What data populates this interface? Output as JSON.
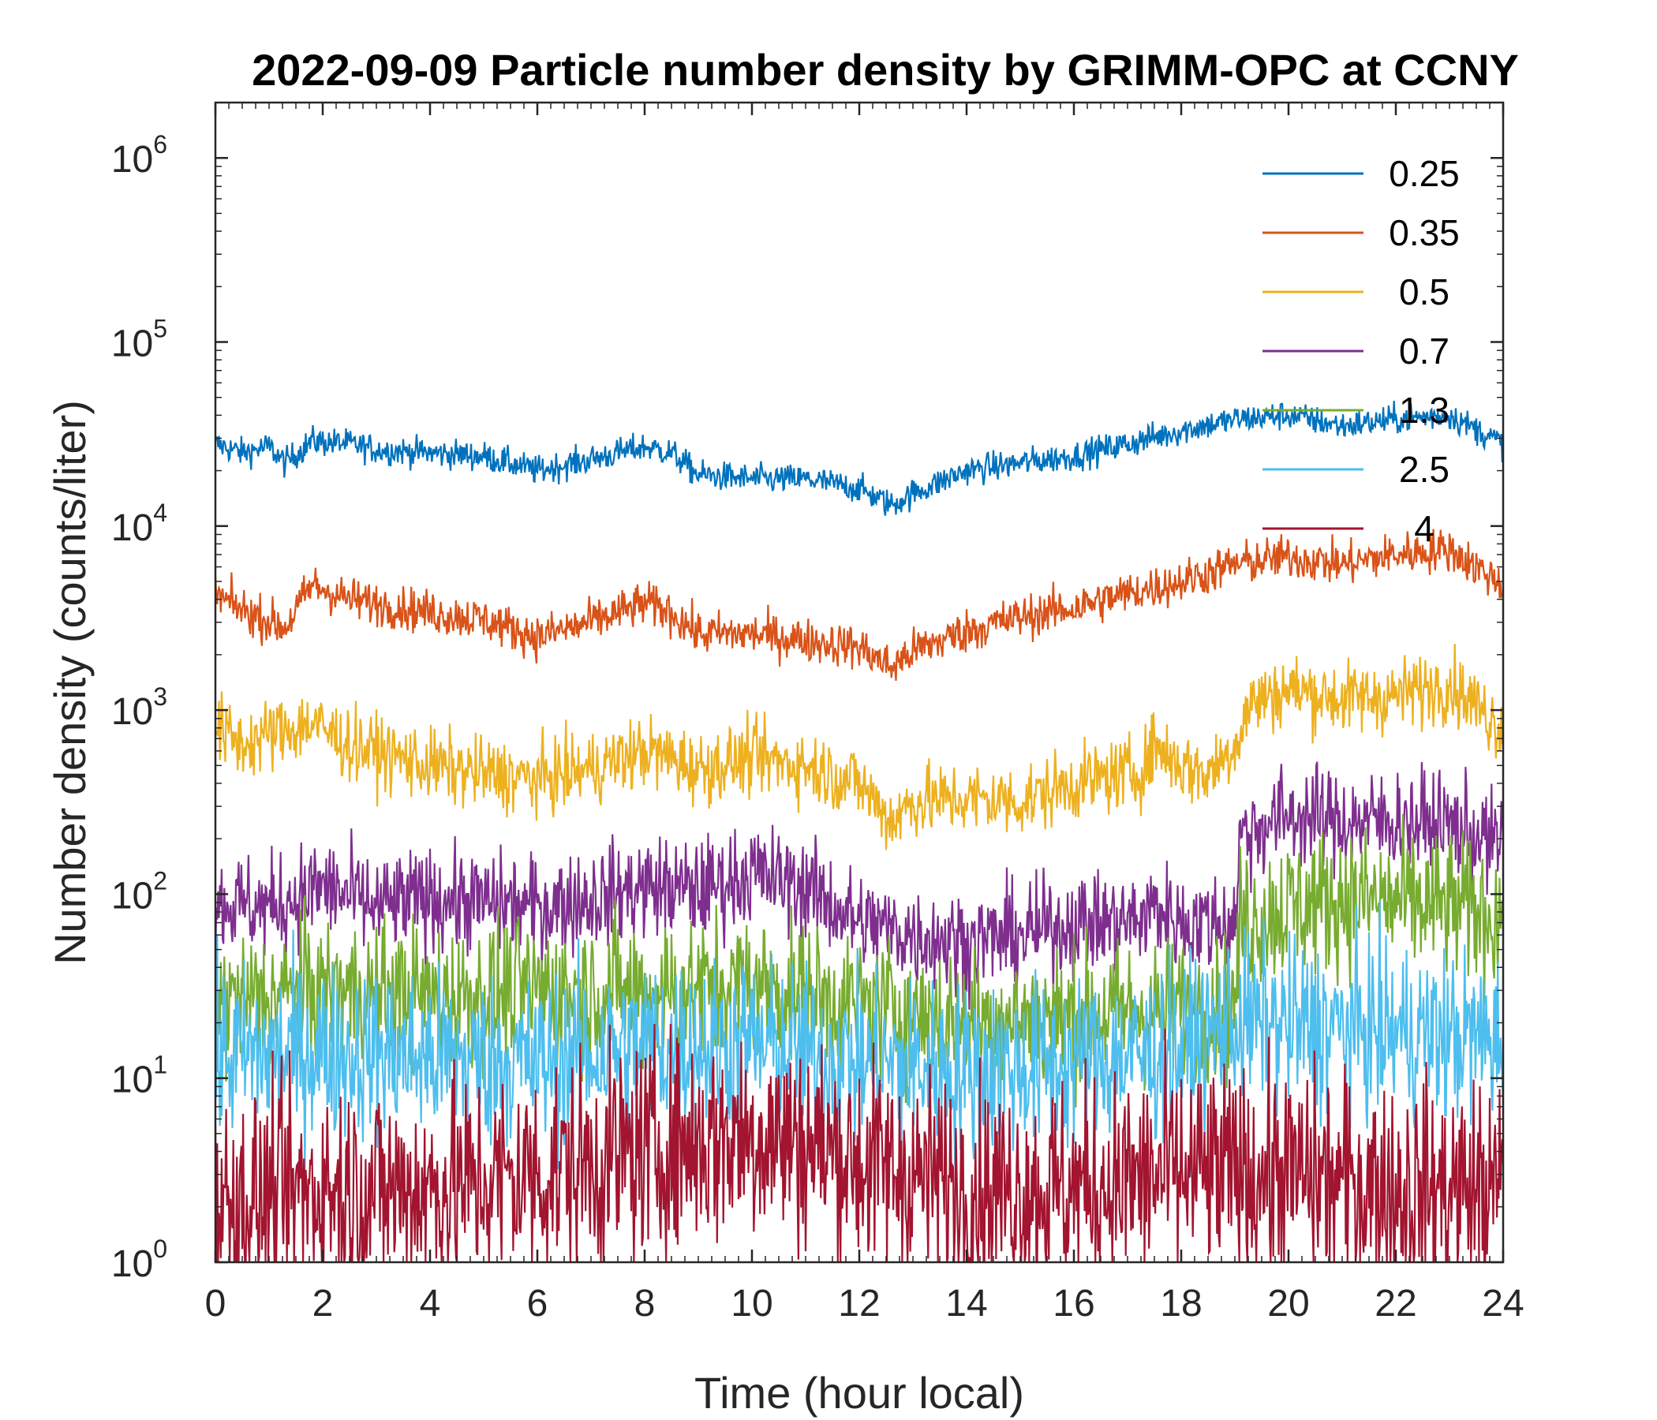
{
  "chart_data": {
    "type": "line",
    "title": "2022-09-09 Particle number density by GRIMM-OPC at CCNY",
    "xlabel": "Time (hour local)",
    "ylabel": "Number density (counts/liter)",
    "xlim": [
      0,
      24
    ],
    "ylim": [
      1,
      2000000
    ],
    "yscale": "log",
    "legend_position": "top-right",
    "x_ticks": [
      0,
      2,
      4,
      6,
      8,
      10,
      12,
      14,
      16,
      18,
      20,
      22,
      24
    ],
    "x_tick_labels": [
      "0",
      "2",
      "4",
      "6",
      "8",
      "10",
      "12",
      "14",
      "16",
      "18",
      "20",
      "22",
      "24"
    ],
    "y_ticks": [
      {
        "value": 1,
        "base": "10",
        "exp": "0"
      },
      {
        "value": 10,
        "base": "10",
        "exp": "1"
      },
      {
        "value": 100,
        "base": "10",
        "exp": "2"
      },
      {
        "value": 1000,
        "base": "10",
        "exp": "3"
      },
      {
        "value": 10000,
        "base": "10",
        "exp": "4"
      },
      {
        "value": 100000,
        "base": "10",
        "exp": "5"
      },
      {
        "value": 1000000,
        "base": "10",
        "exp": "6"
      }
    ],
    "series": [
      {
        "name": "0.25",
        "color": "#0072BD",
        "noise": 0.04,
        "min": 1,
        "x": [
          0,
          0.5,
          1,
          1.3,
          1.8,
          2.5,
          3,
          4,
          5,
          6,
          7,
          8,
          8.5,
          9,
          10,
          11,
          12,
          12.6,
          13,
          14,
          15,
          16,
          17,
          18,
          19,
          20,
          21,
          22,
          23,
          24
        ],
        "values": [
          28000,
          25000,
          27000,
          22000,
          29000,
          28000,
          26000,
          25000,
          24000,
          20000,
          23000,
          27000,
          25000,
          19000,
          18000,
          18000,
          16000,
          13000,
          15000,
          20000,
          22000,
          24000,
          28000,
          33000,
          38000,
          40000,
          35000,
          38000,
          40000,
          28000
        ]
      },
      {
        "name": "0.35",
        "color": "#D95319",
        "noise": 0.06,
        "min": 1,
        "x": [
          0,
          0.5,
          1.3,
          1.8,
          2.5,
          4,
          5,
          6,
          7,
          8,
          8.5,
          9,
          10,
          11,
          12,
          12.6,
          13,
          14,
          15,
          16,
          17,
          18,
          19,
          20,
          21,
          22,
          23,
          24
        ],
        "values": [
          4200,
          3500,
          2800,
          4800,
          4000,
          3400,
          3100,
          2500,
          3000,
          3800,
          3400,
          2600,
          2600,
          2400,
          2200,
          1700,
          2100,
          2700,
          3200,
          3600,
          4300,
          5000,
          6200,
          6800,
          6200,
          7000,
          7500,
          4800
        ]
      },
      {
        "name": "0.5",
        "color": "#EDB120",
        "noise": 0.1,
        "min": 1,
        "x": [
          0,
          0.5,
          1.1,
          1.8,
          2.5,
          4,
          5,
          6,
          7,
          8,
          8.5,
          9,
          10,
          11,
          12,
          12.6,
          13,
          14,
          15,
          16,
          17,
          17.3,
          17.5,
          18,
          18.5,
          19,
          19.3,
          20,
          21,
          22,
          23,
          24
        ],
        "values": [
          800,
          650,
          750,
          850,
          650,
          500,
          450,
          420,
          480,
          600,
          550,
          480,
          550,
          500,
          400,
          250,
          320,
          330,
          320,
          400,
          450,
          480,
          650,
          500,
          450,
          650,
          1100,
          1300,
          1150,
          1200,
          1400,
          800
        ]
      },
      {
        "name": "0.7",
        "color": "#7E2F8E",
        "noise": 0.14,
        "min": 1,
        "x": [
          0,
          1,
          2,
          3,
          4,
          5,
          6,
          7,
          8,
          9,
          10,
          11,
          12,
          13,
          14,
          15,
          16,
          17,
          17.3,
          17.5,
          18,
          19,
          19.1,
          20,
          21,
          22,
          23,
          24
        ],
        "values": [
          90,
          85,
          110,
          85,
          95,
          90,
          85,
          95,
          110,
          105,
          130,
          110,
          70,
          60,
          55,
          60,
          70,
          70,
          75,
          85,
          70,
          70,
          210,
          270,
          250,
          250,
          240,
          180
        ]
      },
      {
        "name": "1.3",
        "color": "#77AC30",
        "noise": 0.2,
        "min": 5,
        "x": [
          0,
          2,
          4,
          6,
          8,
          10,
          12,
          14,
          16,
          18,
          19,
          19.1,
          20,
          21,
          22,
          23,
          24
        ],
        "values": [
          25,
          30,
          28,
          30,
          30,
          32,
          25,
          20,
          22,
          24,
          24,
          70,
          85,
          95,
          90,
          85,
          75
        ]
      },
      {
        "name": "2.5",
        "color": "#4DBEEE",
        "noise": 0.24,
        "min": 2,
        "x": [
          0,
          2,
          4,
          6,
          8,
          10,
          12,
          14,
          16,
          18,
          19,
          20,
          22,
          24
        ],
        "values": [
          13,
          14,
          13,
          12,
          15,
          15,
          12,
          11,
          12,
          14,
          20,
          19,
          18,
          16
        ]
      },
      {
        "name": "4",
        "color": "#A2142F",
        "noise": 0.3,
        "min": 1,
        "x": [
          0,
          2,
          4,
          6,
          8,
          9,
          10,
          11,
          12,
          13,
          14,
          16,
          18,
          20,
          22,
          24
        ],
        "values": [
          2,
          2.5,
          2.5,
          3,
          4,
          4.5,
          5,
          4.5,
          3.5,
          3,
          2.5,
          2.5,
          3,
          3,
          2.5,
          2.5
        ]
      }
    ]
  }
}
